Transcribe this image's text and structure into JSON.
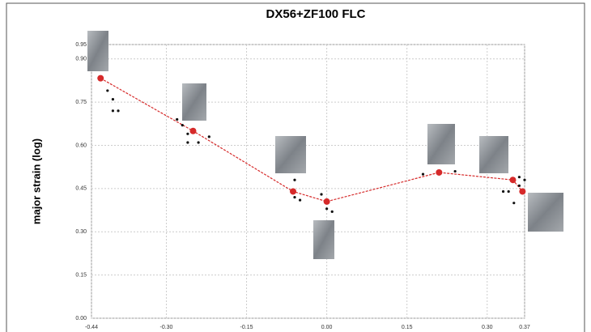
{
  "chart_data": {
    "type": "scatter",
    "title": "DX56+ZF100 FLC",
    "y_label": "major strain (log)",
    "xlim": [
      -0.44,
      0.37
    ],
    "ylim": [
      0,
      0.95
    ],
    "grid": true,
    "xticks": [
      {
        "value": -0.44,
        "label": "-0.44"
      },
      {
        "value": -0.3,
        "label": "-0.30"
      },
      {
        "value": -0.15,
        "label": "-0.15"
      },
      {
        "value": 0,
        "label": "0.00"
      },
      {
        "value": 0.15,
        "label": "0.15"
      },
      {
        "value": 0.3,
        "label": "0.30"
      },
      {
        "value": 0.37,
        "label": "0.37"
      }
    ],
    "yticks": [
      {
        "value": 0,
        "label": "0.00"
      },
      {
        "value": 0.15,
        "label": "0.15"
      },
      {
        "value": 0.3,
        "label": "0.30"
      },
      {
        "value": 0.45,
        "label": "0.45"
      },
      {
        "value": 0.6,
        "label": "0.60"
      },
      {
        "value": 0.75,
        "label": "0.75"
      },
      {
        "value": 0.9,
        "label": "0.90"
      },
      {
        "value": 0.95,
        "label": "0.95"
      }
    ],
    "series": [
      {
        "color": "#d62a2a",
        "line": true,
        "x": [
          -0.423,
          -0.25,
          -0.063,
          0.0,
          0.21,
          0.348,
          0.366
        ],
        "values": [
          0.833,
          0.65,
          0.44,
          0.405,
          0.506,
          0.48,
          0.44
        ]
      },
      {
        "color": "#111111",
        "line": false,
        "x": [
          -0.41,
          -0.4,
          -0.4,
          -0.39,
          -0.28,
          -0.27,
          -0.26,
          -0.24,
          -0.26,
          -0.22,
          -0.06,
          -0.06,
          -0.05,
          -0.01,
          0.0,
          0.01,
          0.18,
          0.24,
          0.33,
          0.34,
          0.35,
          0.36,
          0.37,
          0.36
        ],
        "values": [
          0.79,
          0.76,
          0.72,
          0.72,
          0.69,
          0.67,
          0.64,
          0.61,
          0.61,
          0.63,
          0.48,
          0.42,
          0.41,
          0.43,
          0.38,
          0.37,
          0.5,
          0.51,
          0.44,
          0.44,
          0.4,
          0.49,
          0.48,
          0.46
        ]
      }
    ]
  }
}
